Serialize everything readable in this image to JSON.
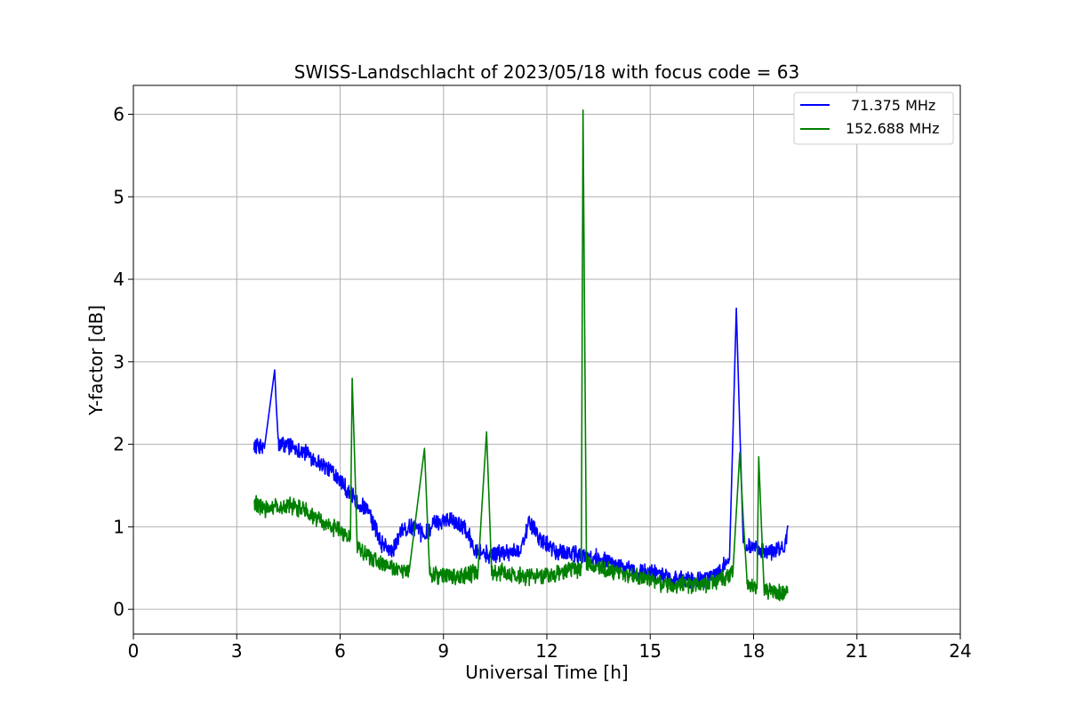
{
  "chart_data": {
    "type": "line",
    "title": "SWISS-Landschlacht of 2023/05/18 with focus code = 63",
    "xlabel": "Universal Time [h]",
    "ylabel": "Y-factor [dB]",
    "xlim": [
      0,
      24
    ],
    "ylim": [
      -0.3,
      6.35
    ],
    "xticks": [
      0,
      3,
      6,
      9,
      12,
      15,
      18,
      21,
      24
    ],
    "yticks": [
      0,
      1,
      2,
      3,
      4,
      5,
      6
    ],
    "grid": true,
    "legend_position": "top-right",
    "series": [
      {
        "name": "71.375 MHz",
        "color": "#0000ff",
        "points": [
          [
            3.5,
            2.0
          ],
          [
            3.8,
            1.95
          ],
          [
            4.1,
            2.9
          ],
          [
            4.2,
            2.0
          ],
          [
            4.5,
            2.0
          ],
          [
            5.0,
            1.9
          ],
          [
            5.5,
            1.75
          ],
          [
            6.0,
            1.6
          ],
          [
            6.2,
            1.45
          ],
          [
            6.5,
            1.3
          ],
          [
            6.8,
            1.2
          ],
          [
            7.0,
            1.0
          ],
          [
            7.2,
            0.8
          ],
          [
            7.5,
            0.7
          ],
          [
            7.8,
            0.95
          ],
          [
            8.1,
            1.0
          ],
          [
            8.4,
            0.9
          ],
          [
            8.8,
            1.05
          ],
          [
            9.2,
            1.1
          ],
          [
            9.6,
            1.0
          ],
          [
            9.9,
            0.75
          ],
          [
            10.3,
            0.65
          ],
          [
            10.8,
            0.7
          ],
          [
            11.2,
            0.7
          ],
          [
            11.5,
            1.05
          ],
          [
            11.8,
            0.85
          ],
          [
            12.2,
            0.7
          ],
          [
            12.5,
            0.7
          ],
          [
            12.9,
            0.65
          ],
          [
            13.2,
            0.65
          ],
          [
            13.6,
            0.6
          ],
          [
            14.0,
            0.55
          ],
          [
            14.5,
            0.45
          ],
          [
            15.0,
            0.45
          ],
          [
            15.5,
            0.4
          ],
          [
            16.0,
            0.35
          ],
          [
            16.5,
            0.35
          ],
          [
            17.0,
            0.45
          ],
          [
            17.3,
            0.6
          ],
          [
            17.5,
            3.65
          ],
          [
            17.7,
            0.75
          ],
          [
            18.0,
            0.75
          ],
          [
            18.5,
            0.7
          ],
          [
            18.9,
            0.75
          ],
          [
            19.0,
            1.0
          ]
        ]
      },
      {
        "name": "152.688 MHz",
        "color": "#008000",
        "points": [
          [
            3.5,
            1.3
          ],
          [
            3.8,
            1.2
          ],
          [
            4.1,
            1.25
          ],
          [
            4.5,
            1.25
          ],
          [
            5.0,
            1.2
          ],
          [
            5.5,
            1.05
          ],
          [
            6.0,
            0.95
          ],
          [
            6.3,
            0.85
          ],
          [
            6.35,
            2.8
          ],
          [
            6.5,
            0.75
          ],
          [
            7.0,
            0.6
          ],
          [
            7.5,
            0.5
          ],
          [
            8.0,
            0.45
          ],
          [
            8.45,
            1.95
          ],
          [
            8.6,
            0.4
          ],
          [
            9.0,
            0.4
          ],
          [
            9.5,
            0.4
          ],
          [
            10.0,
            0.45
          ],
          [
            10.25,
            2.15
          ],
          [
            10.4,
            0.45
          ],
          [
            10.8,
            0.45
          ],
          [
            11.2,
            0.4
          ],
          [
            11.6,
            0.4
          ],
          [
            12.0,
            0.4
          ],
          [
            12.5,
            0.45
          ],
          [
            13.0,
            0.5
          ],
          [
            13.05,
            6.05
          ],
          [
            13.15,
            0.55
          ],
          [
            13.5,
            0.5
          ],
          [
            14.0,
            0.45
          ],
          [
            14.5,
            0.4
          ],
          [
            15.0,
            0.35
          ],
          [
            15.5,
            0.3
          ],
          [
            16.0,
            0.3
          ],
          [
            16.5,
            0.3
          ],
          [
            17.0,
            0.35
          ],
          [
            17.4,
            0.45
          ],
          [
            17.6,
            1.9
          ],
          [
            17.8,
            0.3
          ],
          [
            18.1,
            0.25
          ],
          [
            18.15,
            1.85
          ],
          [
            18.3,
            0.25
          ],
          [
            18.6,
            0.2
          ],
          [
            19.0,
            0.2
          ]
        ]
      }
    ]
  }
}
